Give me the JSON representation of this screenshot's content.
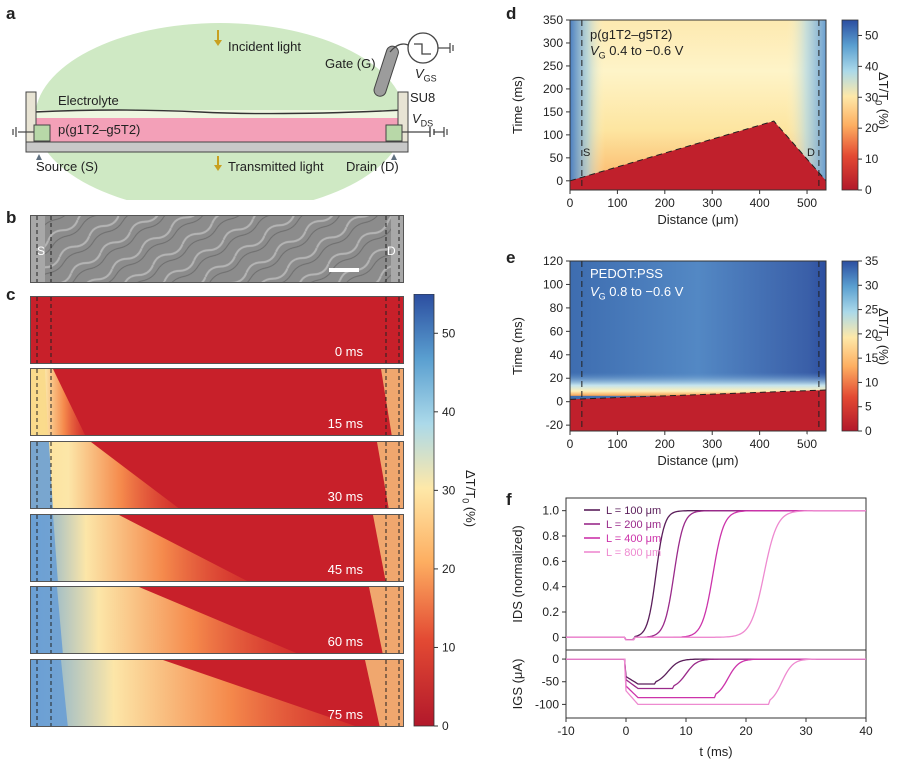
{
  "panels": {
    "a": "a",
    "b": "b",
    "c": "c",
    "d": "d",
    "e": "e",
    "f": "f"
  },
  "panel_a": {
    "incident": "Incident light",
    "gate": "Gate (G)",
    "vgs_main": "V",
    "vgs_sub": "GS",
    "electrolyte": "Electrolyte",
    "su8": "SU8",
    "polymer": "p(g1T2–g5T2)",
    "vds_main": "V",
    "vds_sub": "DS",
    "source": "Source (S)",
    "transmitted": "Transmitted light",
    "drain": "Drain (D)"
  },
  "panel_b": {
    "s": "S",
    "d": "D"
  },
  "panel_c": {
    "times": [
      "0 ms",
      "15 ms",
      "30 ms",
      "45 ms",
      "60 ms",
      "75 ms"
    ],
    "colorbar_ticks": [
      "0",
      "10",
      "20",
      "30",
      "40",
      "50"
    ],
    "colorbar_label": "ΔT/T0 (%)"
  },
  "panel_d": {
    "line1": "p(g1T2–g5T2)",
    "line2_v": "V",
    "line2_sub": "G",
    "line2_rest": " 0.4 to −0.6 V",
    "s": "S",
    "d": "D"
  },
  "panel_e": {
    "line1": "PEDOT:PSS",
    "line2_v": "V",
    "line2_sub": "G",
    "line2_rest": " 0.8 to −0.6 V",
    "s": "S",
    "d": "D"
  },
  "chart_data": [
    {
      "type": "heatmap",
      "panel": "d",
      "xlabel": "Distance (μm)",
      "ylabel": "Time (ms)",
      "xlim": [
        0,
        540
      ],
      "ylim": [
        -20,
        350
      ],
      "xticks": [
        0,
        100,
        200,
        300,
        400,
        500
      ],
      "yticks": [
        0,
        50,
        100,
        150,
        200,
        250,
        300,
        350
      ],
      "colorbar_label": "ΔT/T0 (%)",
      "colorbar_ticks": [
        0,
        10,
        20,
        30,
        40,
        50
      ],
      "front_line": [
        [
          0,
          0
        ],
        [
          430,
          130
        ],
        [
          540,
          0
        ]
      ],
      "source_x": 25,
      "drain_x": 525
    },
    {
      "type": "heatmap",
      "panel": "e",
      "xlabel": "Distance (μm)",
      "ylabel": "Time (ms)",
      "xlim": [
        0,
        540
      ],
      "ylim": [
        -25,
        120
      ],
      "xticks": [
        0,
        100,
        200,
        300,
        400,
        500
      ],
      "yticks": [
        -20,
        0,
        20,
        40,
        60,
        80,
        100,
        120
      ],
      "colorbar_label": "ΔT/T0 (%)",
      "colorbar_ticks": [
        0,
        5,
        10,
        15,
        20,
        25,
        30,
        35
      ],
      "front_line": [
        [
          0,
          2
        ],
        [
          540,
          10
        ]
      ],
      "source_x": 25,
      "drain_x": 525
    },
    {
      "type": "line",
      "panel": "f-top",
      "ylabel": "IDS (normalized)",
      "xlim": [
        -10,
        40
      ],
      "ylim": [
        -0.1,
        1.1
      ],
      "yticks": [
        0,
        0.2,
        0.4,
        0.6,
        0.8,
        1.0
      ],
      "series": [
        {
          "name": "L = 100 μm",
          "color": "#5a1e5a",
          "t_mid": 5,
          "width": 0.7
        },
        {
          "name": "L = 200 μm",
          "color": "#9a2a8a",
          "t_mid": 8,
          "width": 0.8
        },
        {
          "name": "L = 400 μm",
          "color": "#cc33aa",
          "t_mid": 14.5,
          "width": 0.9
        },
        {
          "name": "L = 800 μm",
          "color": "#ee8ad0",
          "t_mid": 23,
          "width": 1.1
        }
      ]
    },
    {
      "type": "line",
      "panel": "f-bottom",
      "xlabel": "t (ms)",
      "ylabel": "IGS (μA)",
      "xlim": [
        -10,
        40
      ],
      "ylim": [
        -130,
        20
      ],
      "xticks": [
        -10,
        0,
        10,
        20,
        30,
        40
      ],
      "yticks": [
        -100,
        -50,
        0
      ],
      "series": [
        {
          "name": "L = 100 μm",
          "peak": -55,
          "end": 8
        },
        {
          "name": "L = 200 μm",
          "peak": -65,
          "end": 11
        },
        {
          "name": "L = 400 μm",
          "peak": -85,
          "end": 18
        },
        {
          "name": "L = 800 μm",
          "peak": -100,
          "end": 27
        }
      ]
    }
  ],
  "colors": {
    "red": "#b2182b",
    "blue": "#2c4ea0",
    "electrolyte": "#c8e8c0",
    "polymer": "#f0a0b8",
    "electrode": "#b8d8a8"
  }
}
